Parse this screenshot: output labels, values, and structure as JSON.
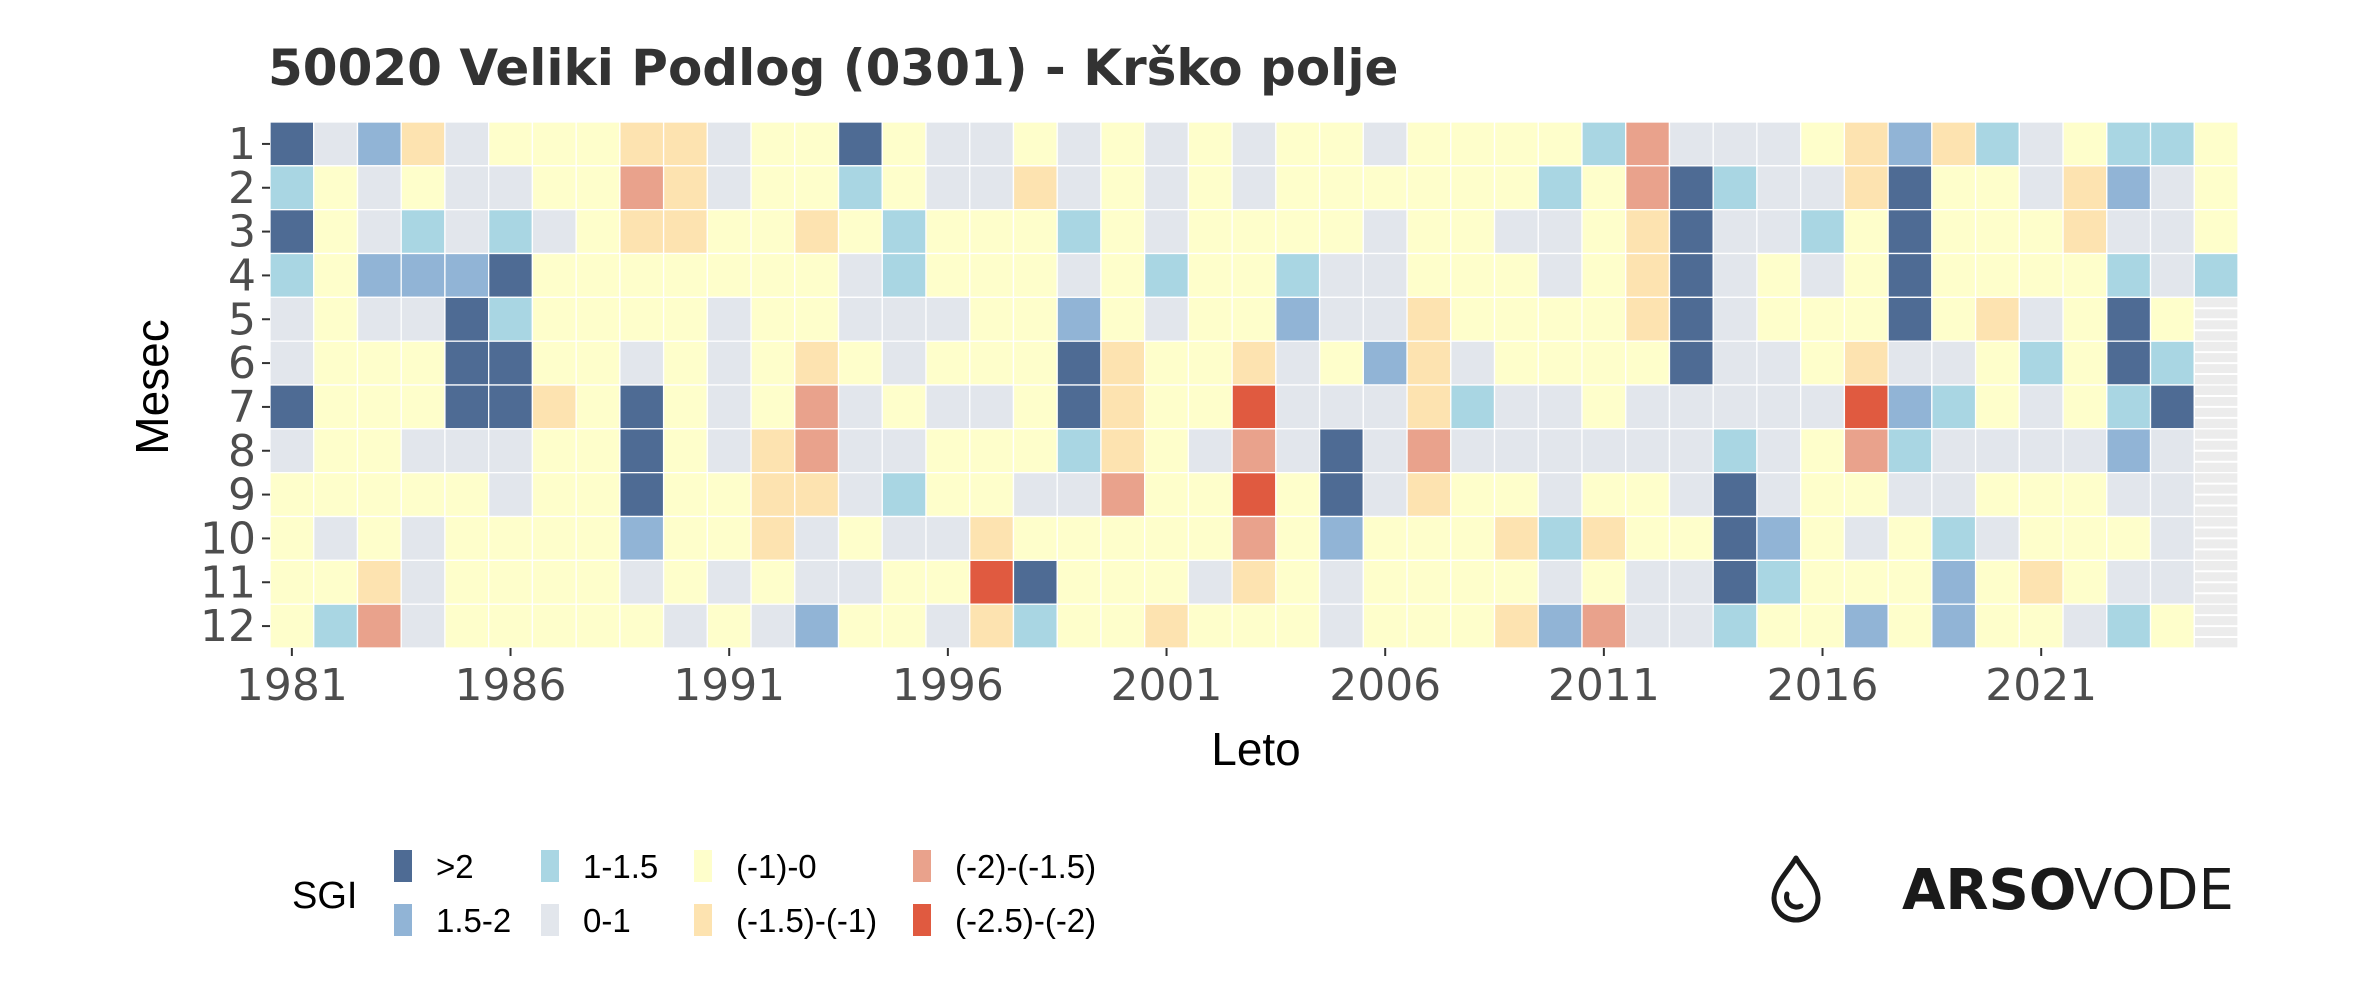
{
  "chart_data": {
    "type": "heatmap",
    "title": "50020 Veliki Podlog (0301) - Krško polje",
    "xlabel": "Leto",
    "ylabel": "Mesec",
    "x_range": [
      1981,
      2025
    ],
    "y_categories": [
      "1",
      "2",
      "3",
      "4",
      "5",
      "6",
      "7",
      "8",
      "9",
      "10",
      "11",
      "12"
    ],
    "x_ticks": [
      1981,
      1986,
      1991,
      1996,
      2001,
      2006,
      2011,
      2016,
      2021
    ],
    "legend": {
      "title": "SGI",
      "placement": "bottom-left",
      "items": [
        {
          "key": "A",
          "label": ">2",
          "color": "#4e6b94"
        },
        {
          "key": "B",
          "label": "1.5-2",
          "color": "#91b4d6"
        },
        {
          "key": "C",
          "label": "1-1.5",
          "color": "#a9d6e3"
        },
        {
          "key": "D",
          "label": "0-1",
          "color": "#e2e6ec"
        },
        {
          "key": "E",
          "label": "(-1)-0",
          "color": "#fefecb"
        },
        {
          "key": "F",
          "label": "(-1.5)-(-1)",
          "color": "#fde3b0"
        },
        {
          "key": "G",
          "label": "(-2)-(-1.5)",
          "color": "#e9a28c"
        },
        {
          "key": "H",
          "label": "(-2.5)-(-2)",
          "color": "#e05a40"
        }
      ]
    },
    "missing_color": "#ececec",
    "grid": "vertical-year-columns, monthly rows; values are SGI classes per year (columns 1981-2025) and month (rows 1-12)",
    "values": {
      "1981": [
        "A",
        "C",
        "A",
        "C",
        "D",
        "D",
        "A",
        "D",
        "E",
        "E",
        "E",
        "E"
      ],
      "1982": [
        "D",
        "E",
        "E",
        "E",
        "E",
        "E",
        "E",
        "E",
        "E",
        "D",
        "E",
        "C"
      ],
      "1983": [
        "B",
        "D",
        "D",
        "B",
        "D",
        "E",
        "E",
        "E",
        "E",
        "E",
        "F",
        "G"
      ],
      "1984": [
        "F",
        "E",
        "C",
        "B",
        "D",
        "E",
        "E",
        "D",
        "E",
        "D",
        "D",
        "D"
      ],
      "1985": [
        "D",
        "D",
        "D",
        "B",
        "A",
        "A",
        "A",
        "D",
        "E",
        "E",
        "E",
        "E"
      ],
      "1986": [
        "E",
        "D",
        "C",
        "A",
        "C",
        "A",
        "A",
        "D",
        "D",
        "E",
        "E",
        "E"
      ],
      "1987": [
        "E",
        "E",
        "D",
        "E",
        "E",
        "E",
        "F",
        "E",
        "E",
        "E",
        "E",
        "E"
      ],
      "1988": [
        "E",
        "E",
        "E",
        "E",
        "E",
        "E",
        "E",
        "E",
        "E",
        "E",
        "E",
        "E"
      ],
      "1989": [
        "F",
        "G",
        "F",
        "E",
        "E",
        "D",
        "A",
        "A",
        "A",
        "B",
        "D",
        "E"
      ],
      "1990": [
        "F",
        "F",
        "F",
        "E",
        "E",
        "E",
        "E",
        "E",
        "E",
        "E",
        "E",
        "D"
      ],
      "1991": [
        "D",
        "D",
        "E",
        "E",
        "D",
        "D",
        "D",
        "D",
        "E",
        "E",
        "D",
        "E"
      ],
      "1992": [
        "E",
        "E",
        "E",
        "E",
        "E",
        "E",
        "E",
        "F",
        "F",
        "F",
        "E",
        "D"
      ],
      "1993": [
        "E",
        "E",
        "F",
        "E",
        "E",
        "F",
        "G",
        "G",
        "F",
        "D",
        "D",
        "B"
      ],
      "1994": [
        "A",
        "C",
        "E",
        "D",
        "D",
        "E",
        "D",
        "D",
        "D",
        "E",
        "D",
        "E"
      ],
      "1995": [
        "E",
        "E",
        "C",
        "C",
        "D",
        "D",
        "E",
        "D",
        "C",
        "D",
        "E",
        "E"
      ],
      "1996": [
        "D",
        "D",
        "E",
        "E",
        "D",
        "E",
        "D",
        "E",
        "E",
        "D",
        "E",
        "D"
      ],
      "1997": [
        "D",
        "D",
        "E",
        "E",
        "E",
        "E",
        "D",
        "E",
        "E",
        "F",
        "H",
        "F"
      ],
      "1998": [
        "E",
        "F",
        "E",
        "E",
        "E",
        "E",
        "E",
        "E",
        "D",
        "E",
        "A",
        "C"
      ],
      "1999": [
        "D",
        "D",
        "C",
        "D",
        "B",
        "A",
        "A",
        "C",
        "D",
        "E",
        "E",
        "E"
      ],
      "2000": [
        "E",
        "E",
        "E",
        "E",
        "E",
        "F",
        "F",
        "F",
        "G",
        "E",
        "E",
        "E"
      ],
      "2001": [
        "D",
        "D",
        "D",
        "C",
        "D",
        "E",
        "E",
        "E",
        "E",
        "E",
        "E",
        "F"
      ],
      "2002": [
        "E",
        "E",
        "E",
        "E",
        "E",
        "E",
        "E",
        "D",
        "E",
        "E",
        "D",
        "E"
      ],
      "2003": [
        "D",
        "D",
        "E",
        "E",
        "E",
        "F",
        "H",
        "G",
        "H",
        "G",
        "F",
        "E"
      ],
      "2004": [
        "E",
        "E",
        "E",
        "C",
        "B",
        "D",
        "D",
        "D",
        "E",
        "E",
        "E",
        "E"
      ],
      "2005": [
        "E",
        "E",
        "E",
        "D",
        "D",
        "E",
        "D",
        "A",
        "A",
        "B",
        "D",
        "D"
      ],
      "2006": [
        "D",
        "E",
        "D",
        "D",
        "D",
        "B",
        "D",
        "D",
        "D",
        "E",
        "E",
        "E"
      ],
      "2007": [
        "E",
        "E",
        "E",
        "E",
        "F",
        "F",
        "F",
        "G",
        "F",
        "E",
        "E",
        "E"
      ],
      "2008": [
        "E",
        "E",
        "E",
        "E",
        "E",
        "D",
        "C",
        "D",
        "E",
        "E",
        "E",
        "E"
      ],
      "2009": [
        "E",
        "E",
        "D",
        "E",
        "E",
        "E",
        "D",
        "D",
        "E",
        "F",
        "E",
        "F"
      ],
      "2010": [
        "E",
        "C",
        "D",
        "D",
        "E",
        "E",
        "D",
        "D",
        "D",
        "C",
        "D",
        "B"
      ],
      "2011": [
        "C",
        "E",
        "E",
        "E",
        "E",
        "E",
        "E",
        "D",
        "E",
        "F",
        "E",
        "G"
      ],
      "2012": [
        "G",
        "G",
        "F",
        "F",
        "F",
        "E",
        "D",
        "D",
        "E",
        "E",
        "D",
        "D"
      ],
      "2013": [
        "D",
        "A",
        "A",
        "A",
        "A",
        "A",
        "D",
        "D",
        "D",
        "E",
        "D",
        "D"
      ],
      "2014": [
        "D",
        "C",
        "D",
        "D",
        "D",
        "D",
        "D",
        "C",
        "A",
        "A",
        "A",
        "C"
      ],
      "2015": [
        "D",
        "D",
        "D",
        "E",
        "E",
        "D",
        "D",
        "D",
        "D",
        "B",
        "C",
        "E"
      ],
      "2016": [
        "E",
        "D",
        "C",
        "D",
        "E",
        "E",
        "D",
        "E",
        "E",
        "E",
        "E",
        "E"
      ],
      "2017": [
        "F",
        "F",
        "E",
        "E",
        "E",
        "F",
        "H",
        "G",
        "E",
        "D",
        "E",
        "B"
      ],
      "2018": [
        "B",
        "A",
        "A",
        "A",
        "A",
        "D",
        "B",
        "C",
        "D",
        "E",
        "E",
        "E"
      ],
      "2019": [
        "F",
        "E",
        "E",
        "E",
        "E",
        "D",
        "C",
        "D",
        "D",
        "C",
        "B",
        "B"
      ],
      "2020": [
        "C",
        "E",
        "E",
        "E",
        "F",
        "E",
        "E",
        "D",
        "E",
        "D",
        "E",
        "E"
      ],
      "2021": [
        "D",
        "D",
        "E",
        "E",
        "D",
        "C",
        "D",
        "D",
        "E",
        "E",
        "F",
        "E"
      ],
      "2022": [
        "E",
        "F",
        "F",
        "E",
        "E",
        "E",
        "E",
        "D",
        "E",
        "E",
        "E",
        "D"
      ],
      "2023": [
        "C",
        "B",
        "D",
        "C",
        "A",
        "A",
        "C",
        "B",
        "D",
        "E",
        "D",
        "C"
      ],
      "2024": [
        "C",
        "D",
        "D",
        "D",
        "E",
        "C",
        "A",
        "D",
        "D",
        "D",
        "D",
        "E"
      ],
      "2025": [
        "E",
        "E",
        "E",
        "C",
        "X",
        "X",
        "X",
        "X",
        "X",
        "X",
        "X",
        "X"
      ]
    }
  },
  "brand": {
    "bold": "ARSO",
    "light": "VODE",
    "icon": "water-drop-icon"
  }
}
